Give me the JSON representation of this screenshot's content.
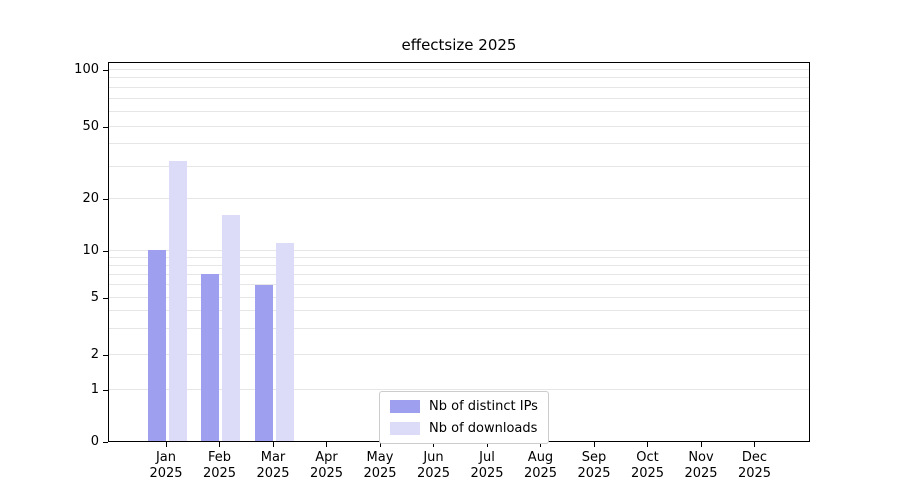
{
  "chart_data": {
    "type": "bar",
    "title": "effectsize 2025",
    "categories": [
      "Jan",
      "Feb",
      "Mar",
      "Apr",
      "May",
      "Jun",
      "Jul",
      "Aug",
      "Sep",
      "Oct",
      "Nov",
      "Dec"
    ],
    "year": "2025",
    "series": [
      {
        "name": "Nb of distinct IPs",
        "color": "#9f9ff0",
        "values": [
          10,
          7,
          6,
          0,
          0,
          0,
          0,
          0,
          0,
          0,
          0,
          0
        ]
      },
      {
        "name": "Nb of downloads",
        "color": "#dcdcf9",
        "values": [
          32,
          16,
          11,
          0,
          0,
          0,
          0,
          0,
          0,
          0,
          0,
          0
        ]
      }
    ],
    "yaxis": {
      "scale": "symlog",
      "tick_labels": [
        "0",
        "1",
        "2",
        "5",
        "10",
        "20",
        "50",
        "100"
      ],
      "ticks": [
        0,
        1,
        2,
        5,
        10,
        20,
        50,
        100
      ],
      "range": [
        0,
        110
      ]
    },
    "grid": true,
    "gridline_values": [
      1,
      2,
      3,
      4,
      5,
      6,
      7,
      8,
      9,
      10,
      20,
      30,
      40,
      50,
      60,
      70,
      80,
      90,
      100
    ],
    "legend": {
      "position": "lower center",
      "entries": [
        "Nb of distinct IPs",
        "Nb of downloads"
      ]
    }
  }
}
